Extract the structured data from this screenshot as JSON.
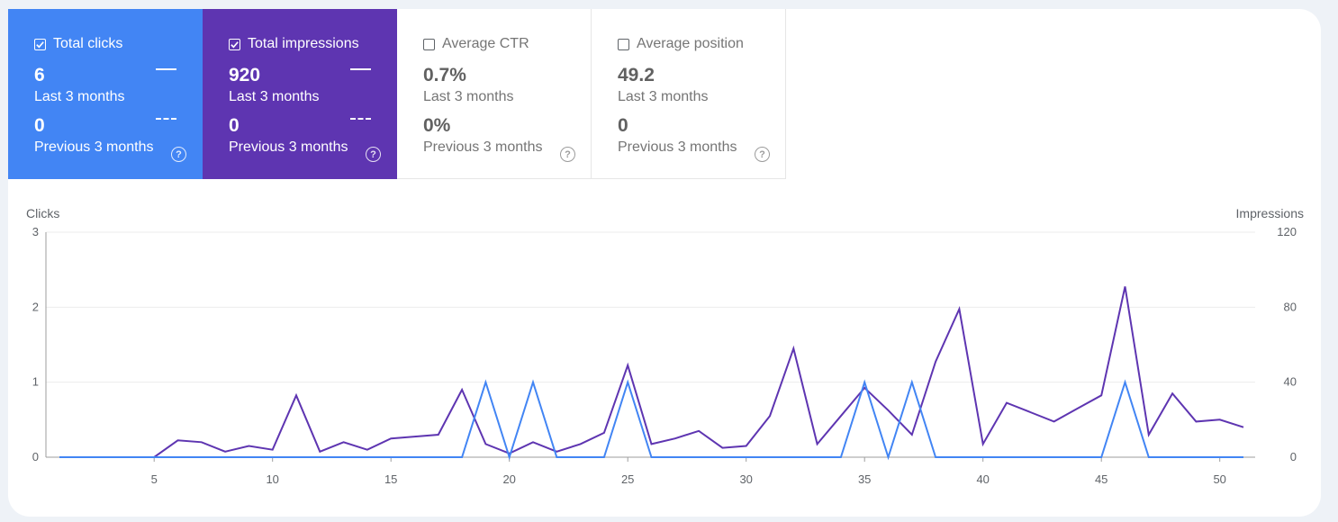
{
  "metrics": [
    {
      "label": "Total clicks",
      "checked": true,
      "value": "6",
      "value_period": "Last 3 months",
      "prev_value": "0",
      "prev_period": "Previous 3 months",
      "color": "#4285f4",
      "help": "?"
    },
    {
      "label": "Total impressions",
      "checked": true,
      "value": "920",
      "value_period": "Last 3 months",
      "prev_value": "0",
      "prev_period": "Previous 3 months",
      "color": "#5e35b1",
      "help": "?"
    },
    {
      "label": "Average CTR",
      "checked": false,
      "value": "0.7%",
      "value_period": "Last 3 months",
      "prev_value": "0%",
      "prev_period": "Previous 3 months",
      "help": "?"
    },
    {
      "label": "Average position",
      "checked": false,
      "value": "49.2",
      "value_period": "Last 3 months",
      "prev_value": "0",
      "prev_period": "Previous 3 months",
      "help": "?"
    }
  ],
  "chart_data": {
    "type": "line",
    "left_axis_label": "Clicks",
    "right_axis_label": "Impressions",
    "left_ticks": [
      "0",
      "1",
      "2",
      "3"
    ],
    "right_ticks": [
      "0",
      "40",
      "80",
      "120"
    ],
    "left_ylim": [
      0,
      3
    ],
    "right_ylim": [
      0,
      120
    ],
    "xlim": [
      1,
      51
    ],
    "x_ticks": [
      5,
      10,
      15,
      20,
      25,
      30,
      35,
      40,
      45,
      50
    ],
    "grid": true,
    "series": [
      {
        "name": "Total clicks",
        "axis": "left",
        "color": "#4285f4",
        "values": [
          0,
          0,
          0,
          0,
          0,
          0,
          0,
          0,
          0,
          0,
          0,
          0,
          0,
          0,
          0,
          0,
          0,
          0,
          1,
          0,
          1,
          0,
          0,
          0,
          1,
          0,
          0,
          0,
          0,
          0,
          0,
          0,
          0,
          0,
          1,
          0,
          1,
          0,
          0,
          0,
          0,
          0,
          0,
          0,
          0,
          1,
          0,
          0,
          0,
          0,
          0
        ]
      },
      {
        "name": "Total impressions",
        "axis": "right",
        "color": "#5e35b1",
        "values": [
          0,
          0,
          0,
          0,
          0,
          9,
          8,
          3,
          6,
          4,
          33,
          3,
          8,
          4,
          10,
          11,
          12,
          36,
          7,
          2,
          8,
          3,
          7,
          13,
          49,
          7,
          10,
          14,
          5,
          6,
          22,
          58,
          7,
          22,
          37,
          25,
          12,
          51,
          79,
          7,
          29,
          24,
          19,
          26,
          33,
          91,
          12,
          34,
          19,
          20,
          16
        ]
      }
    ]
  }
}
